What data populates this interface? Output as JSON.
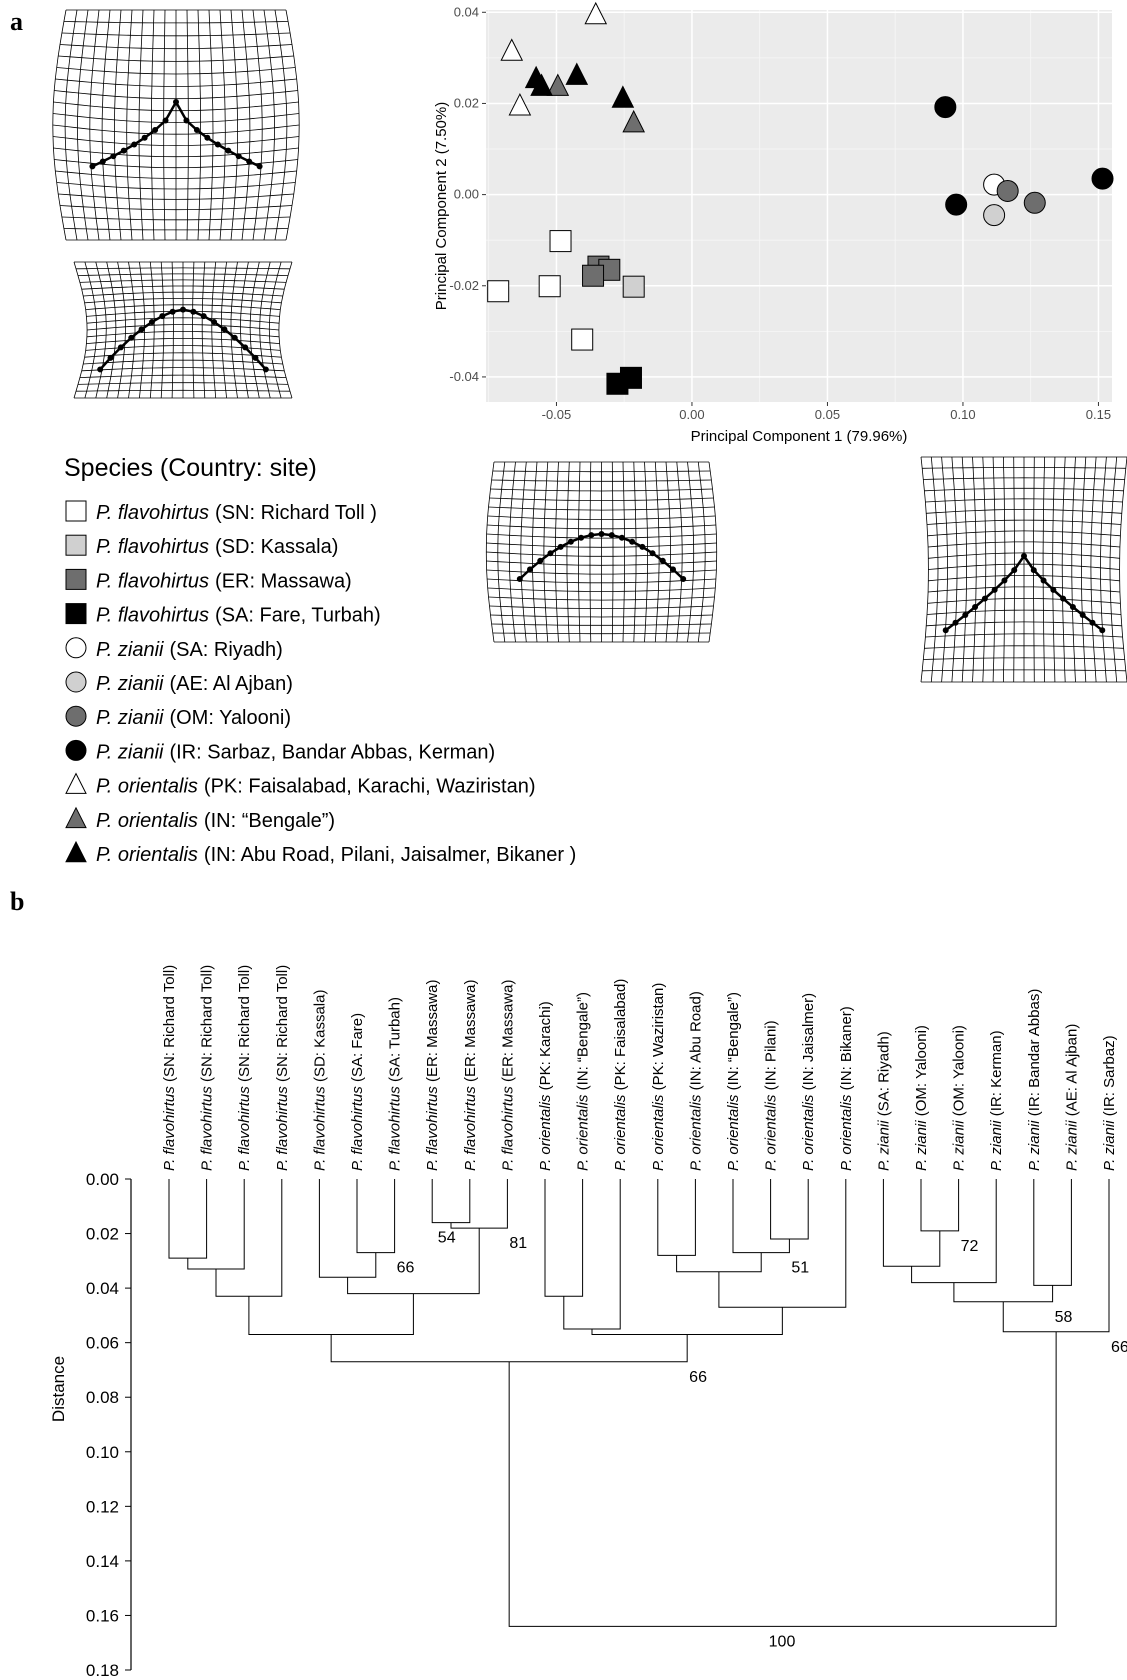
{
  "panels": {
    "a": "a",
    "b": "b"
  },
  "chart_data": [
    {
      "type": "scatter",
      "xlabel": "Principal Component 1 (79.96%)",
      "ylabel": "Principal Component 2 (7.50%)",
      "xlim": [
        -0.076,
        0.155
      ],
      "ylim": [
        -0.0455,
        0.0405
      ],
      "xticks": [
        "-0.05",
        "0.00",
        "0.05",
        "0.10",
        "0.15"
      ],
      "yticks": [
        "0.04",
        "0.02",
        "0.00",
        "-0.02",
        "-0.04"
      ],
      "grid": true,
      "background": "#ebebeb",
      "legend_title": "Species (Country: site)",
      "legend_position": "bottom-left",
      "series": [
        {
          "species": "P. flavohirtus",
          "region": "(SN: Richard Toll )",
          "shape": "square",
          "fill": "#ffffff",
          "points": [
            [
              -0.0715,
              -0.0212
            ],
            [
              -0.0485,
              -0.0102
            ],
            [
              -0.0525,
              -0.0201
            ],
            [
              -0.0405,
              -0.0318
            ]
          ]
        },
        {
          "species": "P. flavohirtus",
          "region": "(SD: Kassala)",
          "shape": "square",
          "fill": "#d0d0d0",
          "points": [
            [
              -0.0215,
              -0.0202
            ]
          ]
        },
        {
          "species": "P. flavohirtus",
          "region": "(ER: Massawa)",
          "shape": "square",
          "fill": "#6e6e6e",
          "points": [
            [
              -0.0345,
              -0.0158
            ],
            [
              -0.0305,
              -0.0165
            ],
            [
              -0.0365,
              -0.0178
            ]
          ]
        },
        {
          "species": "P. flavohirtus",
          "region": "(SA: Fare, Turbah)",
          "shape": "square",
          "fill": "#000000",
          "points": [
            [
              -0.0275,
              -0.0415
            ],
            [
              -0.0225,
              -0.0402
            ]
          ]
        },
        {
          "species": "P. zianii",
          "region": "(SA: Riyadh)",
          "shape": "circle",
          "fill": "#ffffff",
          "points": [
            [
              0.1115,
              0.0022
            ]
          ]
        },
        {
          "species": "P. zianii",
          "region": "(AE: Al Ajban)",
          "shape": "circle",
          "fill": "#d0d0d0",
          "points": [
            [
              0.1115,
              -0.0045
            ]
          ]
        },
        {
          "species": "P. zianii",
          "region": "(OM: Yalooni)",
          "shape": "circle",
          "fill": "#6e6e6e",
          "points": [
            [
              0.1165,
              0.0008
            ],
            [
              0.1265,
              -0.0018
            ]
          ]
        },
        {
          "species": "P. zianii",
          "region": "(IR: Sarbaz, Bandar Abbas, Kerman)",
          "shape": "circle",
          "fill": "#000000",
          "points": [
            [
              0.0935,
              0.0192
            ],
            [
              0.0975,
              -0.0022
            ],
            [
              0.1515,
              0.0035
            ]
          ]
        },
        {
          "species": "P. orientalis",
          "region": "(PK: Faisalabad, Karachi, Waziristan)",
          "shape": "triangle",
          "fill": "#ffffff",
          "points": [
            [
              -0.0665,
              0.0315
            ],
            [
              -0.0635,
              0.0195
            ],
            [
              -0.0355,
              0.0395
            ]
          ]
        },
        {
          "species": "P. orientalis",
          "region": "(IN: “Bengale”)",
          "shape": "triangle",
          "fill": "#6e6e6e",
          "points": [
            [
              -0.0495,
              0.0238
            ],
            [
              -0.0215,
              0.0158
            ]
          ]
        },
        {
          "species": "P. orientalis",
          "region": "(IN: Abu Road, Pilani, Jaisalmer, Bikaner )",
          "shape": "triangle",
          "fill": "#000000",
          "points": [
            [
              -0.0575,
              0.0255
            ],
            [
              -0.0555,
              0.0238
            ],
            [
              -0.0425,
              0.0262
            ],
            [
              -0.0255,
              0.0212
            ]
          ]
        }
      ]
    },
    {
      "type": "dendrogram",
      "ylabel": "Distance",
      "ylim": [
        0.0,
        0.18
      ],
      "yticks": [
        "0.00",
        "0.02",
        "0.04",
        "0.06",
        "0.08",
        "0.10",
        "0.12",
        "0.14",
        "0.16",
        "0.18"
      ],
      "leaves": [
        {
          "sp": "P. flavohirtus",
          "rest": " (SN: Richard Toll)"
        },
        {
          "sp": "P. flavohirtus",
          "rest": " (SN: Richard Toll)"
        },
        {
          "sp": "P. flavohirtus",
          "rest": " (SN: Richard Toll)"
        },
        {
          "sp": "P. flavohirtus",
          "rest": " (SN: Richard Toll)"
        },
        {
          "sp": "P. flavohirtus",
          "rest": " (SD: Kassala)"
        },
        {
          "sp": "P. flavohirtus",
          "rest": " (SA: Fare)"
        },
        {
          "sp": "P. flavohirtus",
          "rest": " (SA: Turbah)"
        },
        {
          "sp": "P. flavohirtus",
          "rest": " (ER: Massawa)"
        },
        {
          "sp": "P. flavohirtus",
          "rest": " (ER: Massawa)"
        },
        {
          "sp": "P. flavohirtus",
          "rest": " (ER: Massawa)"
        },
        {
          "sp": "P. orientalis",
          "rest": " (PK: Karachi)"
        },
        {
          "sp": "P. orientalis",
          "rest": " (IN: “Bengale”)"
        },
        {
          "sp": "P. orientalis",
          "rest": " (PK: Faisalabad)"
        },
        {
          "sp": "P. orientalis",
          "rest": " (PK: Waziristan)"
        },
        {
          "sp": "P. orientalis",
          "rest": " (IN: Abu Road)"
        },
        {
          "sp": "P. orientalis",
          "rest": " (IN: “Bengale”)"
        },
        {
          "sp": "P. orientalis",
          "rest": " (IN: Pilani)"
        },
        {
          "sp": "P. orientalis",
          "rest": " (IN: Jaisalmer)"
        },
        {
          "sp": "P. orientalis",
          "rest": " (IN: Bikaner)"
        },
        {
          "sp": "P. zianii",
          "rest": " (SA: Riyadh)"
        },
        {
          "sp": "P. zianii",
          "rest": " (OM: Yalooni)"
        },
        {
          "sp": "P. zianii",
          "rest": " (OM: Yalooni)"
        },
        {
          "sp": "P. zianii",
          "rest": " (IR: Kerman)"
        },
        {
          "sp": "P. zianii",
          "rest": " (IR: Bandar Abbas)"
        },
        {
          "sp": "P. zianii",
          "rest": " (AE: Al Ajban)"
        },
        {
          "sp": "P. zianii",
          "rest": " (IR: Sarbaz)"
        }
      ],
      "merges": [
        {
          "a": 0,
          "b": 1,
          "h": 0.029
        },
        {
          "a": 26,
          "b": 2,
          "h": 0.033
        },
        {
          "a": 27,
          "b": 3,
          "h": 0.043
        },
        {
          "a": 5,
          "b": 6,
          "h": 0.027,
          "support": "66"
        },
        {
          "a": 4,
          "b": 29,
          "h": 0.036
        },
        {
          "a": 7,
          "b": 8,
          "h": 0.016,
          "support": "54"
        },
        {
          "a": 31,
          "b": 9,
          "h": 0.018,
          "support": "81"
        },
        {
          "a": 30,
          "b": 32,
          "h": 0.042
        },
        {
          "a": 28,
          "b": 33,
          "h": 0.057
        },
        {
          "a": 10,
          "b": 11,
          "h": 0.043
        },
        {
          "a": 35,
          "b": 12,
          "h": 0.055
        },
        {
          "a": 13,
          "b": 14,
          "h": 0.028
        },
        {
          "a": 16,
          "b": 17,
          "h": 0.022
        },
        {
          "a": 15,
          "b": 38,
          "h": 0.027,
          "support": "51"
        },
        {
          "a": 37,
          "b": 39,
          "h": 0.034
        },
        {
          "a": 40,
          "b": 18,
          "h": 0.047
        },
        {
          "a": 36,
          "b": 41,
          "h": 0.057
        },
        {
          "a": 34,
          "b": 42,
          "h": 0.067,
          "support": "66"
        },
        {
          "a": 20,
          "b": 21,
          "h": 0.019,
          "support": "72"
        },
        {
          "a": 19,
          "b": 44,
          "h": 0.032
        },
        {
          "a": 45,
          "b": 22,
          "h": 0.038
        },
        {
          "a": 23,
          "b": 24,
          "h": 0.039
        },
        {
          "a": 46,
          "b": 47,
          "h": 0.045,
          "support": "58"
        },
        {
          "a": 48,
          "b": 25,
          "h": 0.056,
          "support": "66"
        },
        {
          "a": 43,
          "b": 49,
          "h": 0.164,
          "support": "100"
        }
      ]
    }
  ]
}
